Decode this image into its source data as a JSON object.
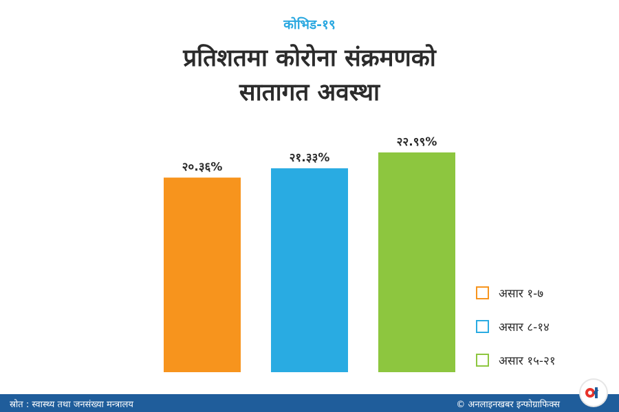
{
  "header": {
    "tag": "कोभिड-१९",
    "title_line1": "प्रतिशतमा कोरोना संक्रमणको",
    "title_line2": "सातागत अवस्था"
  },
  "chart_data": {
    "type": "bar",
    "title": "प्रतिशतमा कोरोना संक्रमणको सातागत अवस्था",
    "categories": [
      "असार १-७",
      "असार ८-१४",
      "असार १५-२१"
    ],
    "values": [
      20.36,
      21.33,
      22.99
    ],
    "value_labels": [
      "२०.३६%",
      "२१.३३%",
      "२२.९९%"
    ],
    "colors": [
      "#f7941d",
      "#29abe2",
      "#8dc63f"
    ],
    "legend_placement": "bottom-right",
    "grid": false,
    "ylim": [
      0,
      22.99
    ]
  },
  "footer": {
    "source": "स्रोत : स्वास्थ्य तथा जनसंख्या मन्त्रालय",
    "credit": "© अनलाइनखबर इन्फोग्राफिक्स"
  },
  "logo": {
    "icon": "onlinekhabar-logo-icon"
  }
}
